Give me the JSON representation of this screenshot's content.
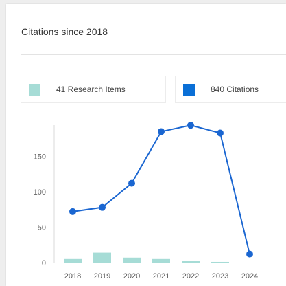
{
  "card": {
    "title": "Citations since 2018"
  },
  "legend": {
    "items": {
      "label": "41 Research Items",
      "color": "#a6dcd6"
    },
    "citations": {
      "label": "840 Citations",
      "color": "#0a6fd6"
    }
  },
  "chart_data": {
    "type": "bar",
    "categories": [
      "2018",
      "2019",
      "2020",
      "2021",
      "2022",
      "2023",
      "2024"
    ],
    "series": [
      {
        "type": "bar",
        "values": [
          6,
          14,
          7,
          6,
          2,
          1,
          0
        ],
        "color": "#a6dcd6"
      },
      {
        "type": "line",
        "values": [
          72,
          78,
          112,
          185,
          194,
          183,
          12
        ],
        "color": "#1a66d1"
      }
    ],
    "yticks": [
      0,
      50,
      100,
      150
    ],
    "ylim": [
      0,
      200
    ],
    "title": "Citations since 2018",
    "xlabel": "",
    "ylabel": ""
  }
}
